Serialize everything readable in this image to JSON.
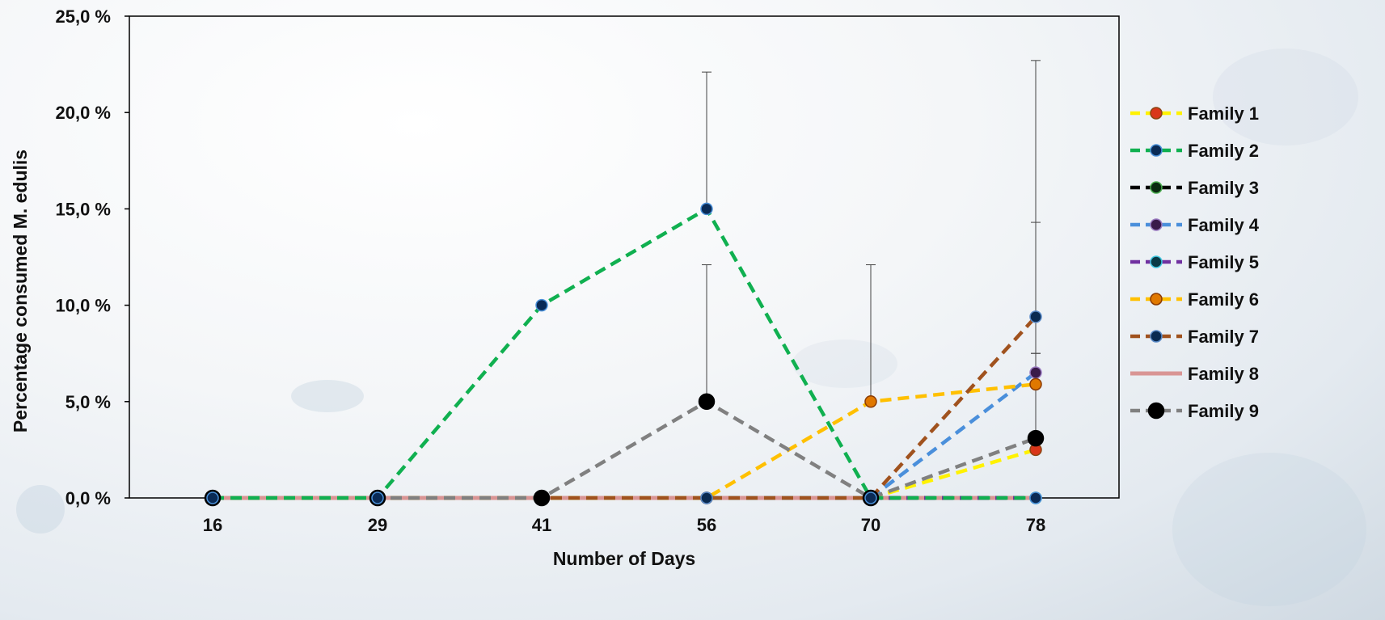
{
  "chart_data": {
    "type": "line",
    "title": "",
    "xlabel": "Number of Days",
    "ylabel": "Percentage consumed M. edulis",
    "categories": [
      "16",
      "29",
      "41",
      "56",
      "70",
      "78"
    ],
    "yticks": [
      "0,0 %",
      "5,0 %",
      "10,0 %",
      "15,0 %",
      "20,0 %",
      "25,0 %"
    ],
    "ylim": [
      0,
      25
    ],
    "grid": false,
    "legend_position": "right",
    "series": [
      {
        "name": "Family 1",
        "color": "#FFF200",
        "marker_fill": "#D9361A",
        "marker_edge": "#8B4513",
        "dash": "dashed",
        "values": [
          0,
          0,
          0,
          0,
          0,
          2.5
        ]
      },
      {
        "name": "Family 2",
        "color": "#10B050",
        "marker_fill": "#0A2A55",
        "marker_edge": "#4A90D9",
        "dash": "dashed",
        "values": [
          0,
          0,
          10,
          15,
          0,
          0
        ],
        "error_up": [
          0,
          0,
          0,
          7.1,
          0,
          0
        ]
      },
      {
        "name": "Family 3",
        "color": "#000000",
        "marker_fill": "#0A2A10",
        "marker_edge": "#4CAF50",
        "dash": "dashed",
        "values": [
          0,
          0,
          0,
          0,
          0,
          0
        ]
      },
      {
        "name": "Family 4",
        "color": "#4A8FDB",
        "marker_fill": "#3A1A4A",
        "marker_edge": "#9A7AC0",
        "dash": "dashed",
        "values": [
          0,
          0,
          0,
          0,
          0,
          6.5
        ],
        "error_up": [
          0,
          0,
          0,
          0,
          0,
          7.8
        ]
      },
      {
        "name": "Family 5",
        "color": "#7030A0",
        "marker_fill": "#0A3A45",
        "marker_edge": "#3FC8E0",
        "dash": "dashed",
        "values": [
          0,
          0,
          0,
          0,
          0,
          0
        ]
      },
      {
        "name": "Family 6",
        "color": "#FFC000",
        "marker_fill": "#E07800",
        "marker_edge": "#8B3A00",
        "dash": "dashed",
        "values": [
          0,
          0,
          0,
          0,
          5,
          5.9
        ],
        "error_up": [
          0,
          0,
          0,
          0,
          7.1,
          1.6
        ]
      },
      {
        "name": "Family 7",
        "color": "#A0521E",
        "marker_fill": "#0A2A50",
        "marker_edge": "#5A8AC8",
        "dash": "dashed",
        "values": [
          0,
          0,
          0,
          0,
          0,
          9.4
        ],
        "error_up": [
          0,
          0,
          0,
          0,
          0,
          13.3
        ]
      },
      {
        "name": "Family 8",
        "color": "#D99594",
        "marker_fill": "",
        "marker_edge": "",
        "dash": "solid",
        "values": [
          0,
          0,
          0,
          0,
          0,
          0
        ]
      },
      {
        "name": "Family 9",
        "color": "#808080",
        "marker_fill": "#000000",
        "marker_edge": "#000000",
        "dash": "dashed",
        "values": [
          0,
          0,
          0,
          5,
          0,
          3.1
        ],
        "error_up": [
          0,
          0,
          0,
          7.1,
          0,
          4.4
        ]
      }
    ]
  }
}
